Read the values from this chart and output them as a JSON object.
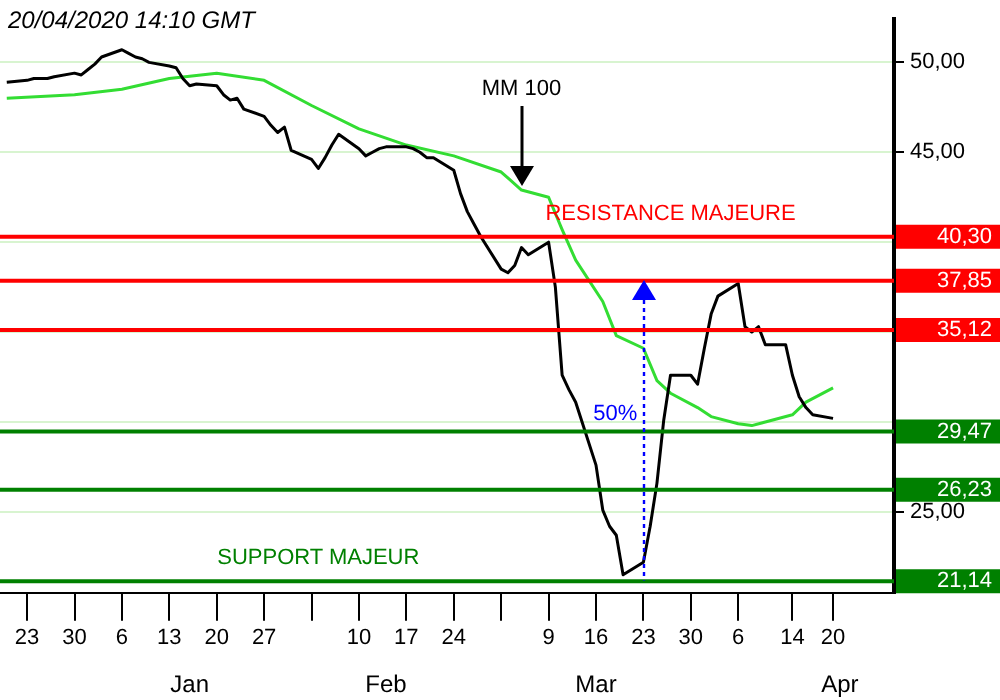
{
  "chart_data": {
    "type": "line",
    "title": "20/04/2020  14:10 GMT",
    "xlim": [
      "2019-12-19",
      "2020-04-29"
    ],
    "xticks": [
      {
        "value": "2019-12-23",
        "label": "23"
      },
      {
        "value": "2019-12-30",
        "label": "30"
      },
      {
        "value": "2020-01-06",
        "label": "6"
      },
      {
        "value": "2020-01-13",
        "label": "13"
      },
      {
        "value": "2020-01-20",
        "label": "20"
      },
      {
        "value": "2020-01-27",
        "label": "27"
      },
      {
        "value": "2020-02-03",
        "label": null
      },
      {
        "value": "2020-02-10",
        "label": "10"
      },
      {
        "value": "2020-02-17",
        "label": "17"
      },
      {
        "value": "2020-02-24",
        "label": "24"
      },
      {
        "value": "2020-03-02",
        "label": null
      },
      {
        "value": "2020-03-09",
        "label": "9"
      },
      {
        "value": "2020-03-16",
        "label": "16"
      },
      {
        "value": "2020-03-23",
        "label": "23"
      },
      {
        "value": "2020-03-30",
        "label": "30"
      },
      {
        "value": "2020-04-06",
        "label": "6"
      },
      {
        "value": "2020-04-14",
        "label": "14"
      },
      {
        "value": "2020-04-20",
        "label": "20"
      }
    ],
    "x2lim": [
      "2019-12-19",
      "2020-04-29"
    ],
    "x2ticks": [
      {
        "value": "2020-01-16",
        "label": "Jan"
      },
      {
        "value": "2020-02-14",
        "label": "Feb"
      },
      {
        "value": "2020-03-16",
        "label": "Mar"
      },
      {
        "value": "2020-04-21",
        "label": "Apr"
      }
    ],
    "ylim": [
      20.5,
      52.4
    ],
    "yticks": [
      {
        "value": 25,
        "label": "25,00"
      },
      {
        "value": 30,
        "label": null
      },
      {
        "value": 35,
        "label": null
      },
      {
        "value": 40,
        "label": null
      },
      {
        "value": 45,
        "label": "45,00"
      },
      {
        "value": 50,
        "label": "50,00"
      }
    ],
    "grid": "y",
    "legend": false,
    "marker": "none",
    "line_style": "solid",
    "series": [
      {
        "color": "#000000",
        "x": [
          "2019-12-20",
          "2019-12-23",
          "2019-12-24",
          "2019-12-25",
          "2019-12-26",
          "2019-12-27",
          "2019-12-30",
          "2019-12-31",
          "2020-01-01",
          "2020-01-02",
          "2020-01-03",
          "2020-01-06",
          "2020-01-07",
          "2020-01-08",
          "2020-01-09",
          "2020-01-10",
          "2020-01-13",
          "2020-01-14",
          "2020-01-15",
          "2020-01-16",
          "2020-01-17",
          "2020-01-20",
          "2020-01-21",
          "2020-01-22",
          "2020-01-23",
          "2020-01-24",
          "2020-01-27",
          "2020-01-28",
          "2020-01-29",
          "2020-01-30",
          "2020-01-31",
          "2020-02-03",
          "2020-02-04",
          "2020-02-05",
          "2020-02-06",
          "2020-02-07",
          "2020-02-10",
          "2020-02-11",
          "2020-02-12",
          "2020-02-13",
          "2020-02-14",
          "2020-02-17",
          "2020-02-18",
          "2020-02-19",
          "2020-02-20",
          "2020-02-21",
          "2020-02-24",
          "2020-02-25",
          "2020-02-26",
          "2020-02-27",
          "2020-02-28",
          "2020-03-02",
          "2020-03-03",
          "2020-03-04",
          "2020-03-05",
          "2020-03-06",
          "2020-03-09",
          "2020-03-10",
          "2020-03-11",
          "2020-03-12",
          "2020-03-13",
          "2020-03-16",
          "2020-03-17",
          "2020-03-18",
          "2020-03-19",
          "2020-03-20",
          "2020-03-23",
          "2020-03-24",
          "2020-03-25",
          "2020-03-26",
          "2020-03-27",
          "2020-03-30",
          "2020-03-31",
          "2020-04-01",
          "2020-04-02",
          "2020-04-03",
          "2020-04-06",
          "2020-04-07",
          "2020-04-08",
          "2020-04-09",
          "2020-04-10",
          "2020-04-13",
          "2020-04-14",
          "2020-04-15",
          "2020-04-16",
          "2020-04-17",
          "2020-04-20"
        ],
        "values": [
          48.9,
          49.0,
          49.1,
          49.1,
          49.1,
          49.2,
          49.4,
          49.3,
          49.6,
          49.9,
          50.3,
          50.7,
          50.5,
          50.3,
          50.2,
          50.0,
          49.8,
          49.7,
          49.1,
          48.7,
          48.8,
          48.7,
          48.2,
          47.9,
          48.0,
          47.4,
          47.0,
          46.5,
          46.1,
          46.4,
          45.1,
          44.6,
          44.1,
          44.7,
          45.4,
          46.0,
          45.2,
          44.8,
          45.0,
          45.2,
          45.3,
          45.3,
          45.2,
          45.0,
          44.7,
          44.7,
          44.0,
          42.7,
          41.7,
          41.0,
          40.3,
          38.5,
          38.3,
          38.7,
          39.7,
          39.3,
          40.0,
          37.5,
          32.6,
          31.8,
          31.1,
          27.6,
          25.1,
          24.2,
          23.7,
          21.5,
          22.2,
          24.2,
          26.6,
          30.1,
          32.6,
          32.6,
          32.1,
          34.1,
          36.0,
          37.0,
          37.7,
          35.3,
          35.0,
          35.3,
          34.3,
          34.3,
          32.6,
          31.4,
          30.8,
          30.4,
          30.2
        ]
      },
      {
        "name": "MM 100",
        "color": "#33dd33",
        "x": [
          "2019-12-20",
          "2019-12-30",
          "2020-01-06",
          "2020-01-13",
          "2020-01-20",
          "2020-01-27",
          "2020-02-03",
          "2020-02-10",
          "2020-02-17",
          "2020-02-24",
          "2020-03-02",
          "2020-03-05",
          "2020-03-09",
          "2020-03-11",
          "2020-03-13",
          "2020-03-17",
          "2020-03-19",
          "2020-03-23",
          "2020-03-25",
          "2020-03-27",
          "2020-03-31",
          "2020-04-02",
          "2020-04-06",
          "2020-04-08",
          "2020-04-10",
          "2020-04-14",
          "2020-04-16",
          "2020-04-20"
        ],
        "values": [
          48.0,
          48.2,
          48.5,
          49.1,
          49.4,
          49.0,
          47.6,
          46.3,
          45.4,
          44.8,
          43.9,
          42.9,
          42.5,
          40.7,
          39.0,
          36.7,
          34.8,
          34.1,
          32.3,
          31.6,
          30.8,
          30.3,
          29.9,
          29.8,
          30.0,
          30.4,
          31.1,
          31.9
        ]
      }
    ],
    "ref_lines": [
      {
        "axis": "y",
        "value": 40.3,
        "label": "40,30",
        "color": "#ff0000"
      },
      {
        "axis": "y",
        "value": 37.85,
        "label": "37,85",
        "color": "#ff0000"
      },
      {
        "axis": "y",
        "value": 35.12,
        "label": "35,12",
        "color": "#ff0000"
      },
      {
        "axis": "y",
        "value": 29.47,
        "label": "29,47",
        "color": "#008000"
      },
      {
        "axis": "y",
        "value": 26.23,
        "label": "26,23",
        "color": "#008000"
      },
      {
        "axis": "y",
        "value": 21.14,
        "label": "21,14",
        "color": "#008000"
      }
    ],
    "annotations": [
      {
        "text": "RESISTANCE MAJEURE",
        "x": "2020-03-27",
        "y": 40.3
      },
      {
        "text": "SUPPORT MAJEUR",
        "x": "2020-02-04",
        "y": 21.14
      },
      {
        "text": "50%",
        "x": "2020-03-23",
        "y": 29.5
      }
    ]
  }
}
